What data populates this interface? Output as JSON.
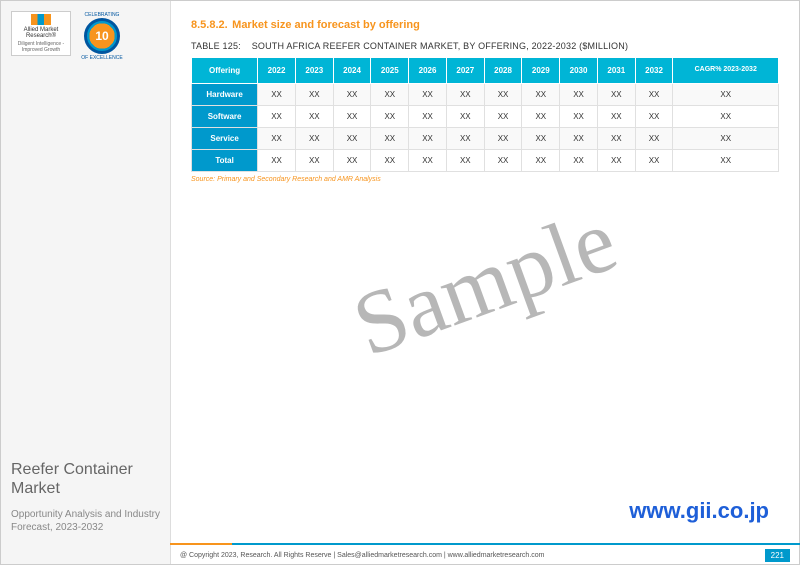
{
  "sidebar": {
    "logo_text": "Allied Market Research®",
    "tagline": "Diligent Intelligence - Improved Growth",
    "badge_number": "10",
    "badge_ribbon_top": "CELEBRATING",
    "badge_ribbon_bottom": "OF EXCELLENCE",
    "report_title": "Reefer Container Market",
    "report_subtitle": "Opportunity Analysis and Industry Forecast, 2023-2032"
  },
  "main": {
    "section_number": "8.5.8.2.",
    "section_title": "Market size and forecast by offering",
    "table_label": "TABLE 125:",
    "table_title": "SOUTH AFRICA REEFER CONTAINER MARKET, BY OFFERING, 2022-2032 ($MILLION)",
    "columns": [
      "Offering",
      "2022",
      "2023",
      "2024",
      "2025",
      "2026",
      "2027",
      "2028",
      "2029",
      "2030",
      "2031",
      "2032",
      "CAGR% 2023-2032"
    ],
    "rows": [
      {
        "label": "Hardware",
        "cells": [
          "XX",
          "XX",
          "XX",
          "XX",
          "XX",
          "XX",
          "XX",
          "XX",
          "XX",
          "XX",
          "XX",
          "XX"
        ]
      },
      {
        "label": "Software",
        "cells": [
          "XX",
          "XX",
          "XX",
          "XX",
          "XX",
          "XX",
          "XX",
          "XX",
          "XX",
          "XX",
          "XX",
          "XX"
        ]
      },
      {
        "label": "Service",
        "cells": [
          "XX",
          "XX",
          "XX",
          "XX",
          "XX",
          "XX",
          "XX",
          "XX",
          "XX",
          "XX",
          "XX",
          "XX"
        ]
      },
      {
        "label": "Total",
        "cells": [
          "XX",
          "XX",
          "XX",
          "XX",
          "XX",
          "XX",
          "XX",
          "XX",
          "XX",
          "XX",
          "XX",
          "XX"
        ]
      }
    ],
    "source_note": "Source: Primary and Secondary Research and AMR Analysis",
    "watermark": "Sample",
    "url": "www.gii.co.jp",
    "copyright": "@ Copyright 2023, Research. All Rights Reserve | Sales@alliedmarketresearch.com | www.alliedmarketresearch.com",
    "page_number": "221"
  },
  "colors": {
    "accent_orange": "#f7941d",
    "accent_teal": "#00b5d6",
    "accent_blue": "#0099cc",
    "link_blue": "#1e5fd8"
  }
}
